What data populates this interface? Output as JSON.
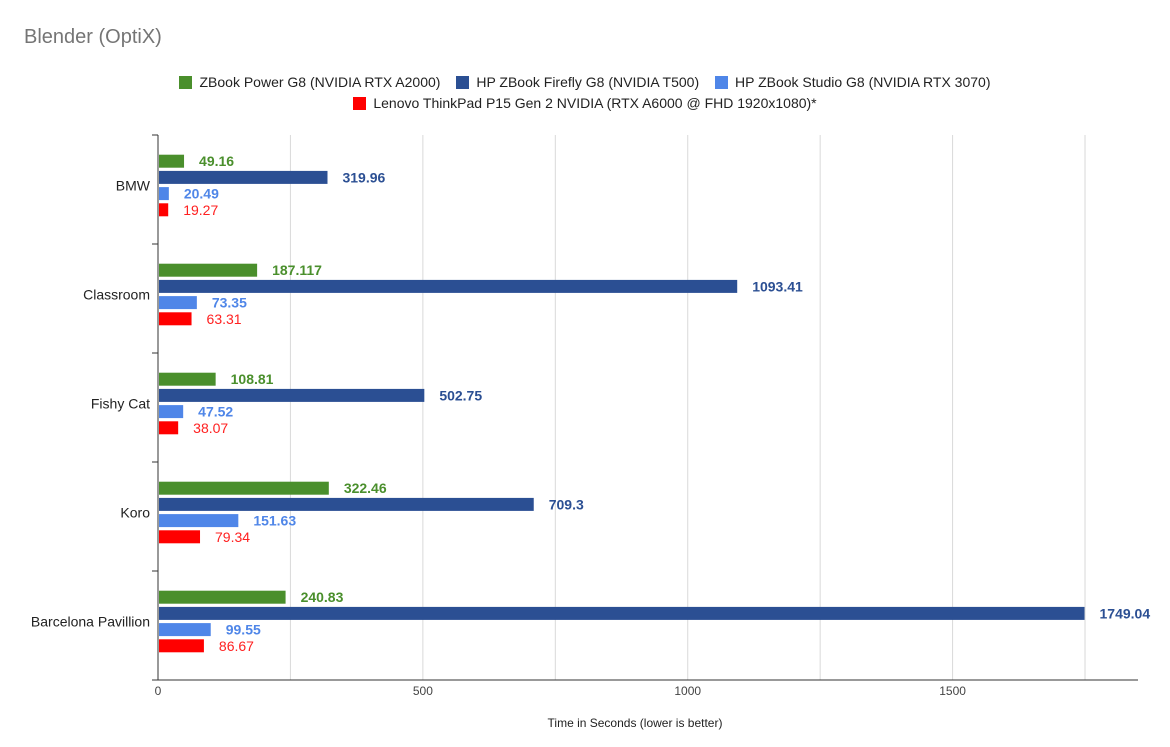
{
  "chart_data": {
    "type": "bar",
    "orientation": "horizontal",
    "title": "Blender (OptiX)",
    "xlabel": "Time in Seconds (lower is better)",
    "ylabel": "",
    "xlim": [
      0,
      1850
    ],
    "xticks": [
      0,
      500,
      1000,
      1500
    ],
    "grid": true,
    "legend_position": "top",
    "categories": [
      "BMW",
      "Classroom",
      "Fishy Cat",
      "Koro",
      "Barcelona Pavillion"
    ],
    "series": [
      {
        "name": "ZBook Power G8 (NVIDIA RTX A2000)",
        "color": "#4a8f2c",
        "label_color": "#4a8f2c",
        "label_bold": true,
        "values": [
          49.16,
          187.117,
          108.81,
          322.46,
          240.83
        ],
        "labels": [
          "49.16",
          "187.117",
          "108.81",
          "322.46",
          "240.83"
        ]
      },
      {
        "name": "HP ZBook Firefly G8 (NVIDIA T500)",
        "color": "#2b4f93",
        "label_color": "#2b4f93",
        "label_bold": true,
        "values": [
          319.96,
          1093.41,
          502.75,
          709.3,
          1749.04
        ],
        "labels": [
          "319.96",
          "1093.41",
          "502.75",
          "709.3",
          "1749.04"
        ]
      },
      {
        "name": "HP ZBook Studio G8 (NVIDIA RTX 3070)",
        "color": "#4f86e8",
        "label_color": "#4f86e8",
        "label_bold": true,
        "values": [
          20.49,
          73.35,
          47.52,
          151.63,
          99.55
        ],
        "labels": [
          "20.49",
          "73.35",
          "47.52",
          "151.63",
          "99.55"
        ]
      },
      {
        "name": "Lenovo ThinkPad P15 Gen 2 NVIDIA (RTX A6000 @ FHD 1920x1080)*",
        "color": "#ff0000",
        "label_color": "#ff2020",
        "label_bold": false,
        "values": [
          19.27,
          63.31,
          38.07,
          79.34,
          86.67
        ],
        "labels": [
          "19.27",
          "63.31",
          "38.07",
          "79.34",
          "86.67"
        ]
      }
    ]
  }
}
